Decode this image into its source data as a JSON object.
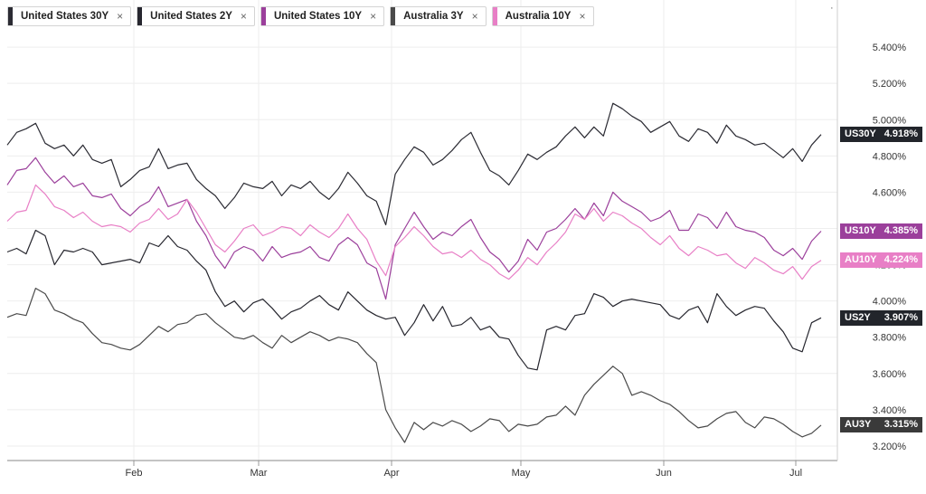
{
  "legend": [
    {
      "label": "United States 30Y",
      "color": "#2b2b33"
    },
    {
      "label": "United States 2Y",
      "color": "#26262e"
    },
    {
      "label": "United States 10Y",
      "color": "#9b3f9b"
    },
    {
      "label": "Australia 3Y",
      "color": "#4a4a4a"
    },
    {
      "label": "Australia 10Y",
      "color": "#e87fc6"
    }
  ],
  "legend_close_glyph": "×",
  "menu_glyph": "·",
  "chart_data": {
    "type": "line",
    "y_unit": "%",
    "ylim": [
      3.12,
      5.66
    ],
    "y_ticks": [
      "5.400%",
      "5.200%",
      "5.000%",
      "4.800%",
      "4.600%",
      "4.400%",
      "4.200%",
      "4.000%",
      "3.800%",
      "3.600%",
      "3.400%",
      "3.200%"
    ],
    "x_tick_labels": [
      "Feb",
      "Mar",
      "Apr",
      "May",
      "Jun",
      "Jul"
    ],
    "grid": true,
    "series": [
      {
        "name": "United States 30Y",
        "tag": "US30Y",
        "last_label": "4.918%",
        "color": "#2b2b33",
        "values": [
          4.86,
          4.93,
          4.95,
          4.98,
          4.87,
          4.84,
          4.86,
          4.8,
          4.86,
          4.78,
          4.76,
          4.78,
          4.63,
          4.67,
          4.72,
          4.74,
          4.84,
          4.73,
          4.75,
          4.76,
          4.67,
          4.62,
          4.58,
          4.51,
          4.57,
          4.65,
          4.63,
          4.62,
          4.66,
          4.58,
          4.64,
          4.62,
          4.66,
          4.6,
          4.56,
          4.62,
          4.71,
          4.65,
          4.58,
          4.55,
          4.42,
          4.7,
          4.78,
          4.85,
          4.82,
          4.75,
          4.78,
          4.83,
          4.89,
          4.93,
          4.82,
          4.72,
          4.69,
          4.64,
          4.72,
          4.81,
          4.78,
          4.82,
          4.85,
          4.91,
          4.96,
          4.9,
          4.96,
          4.91,
          5.09,
          5.06,
          5.02,
          4.99,
          4.93,
          4.96,
          4.99,
          4.91,
          4.88,
          4.95,
          4.93,
          4.87,
          4.97,
          4.91,
          4.89,
          4.86,
          4.87,
          4.83,
          4.79,
          4.84,
          4.77,
          4.86,
          4.918
        ]
      },
      {
        "name": "United States 2Y",
        "tag": "US2Y",
        "last_label": "3.907%",
        "color": "#26262e",
        "values": [
          4.27,
          4.29,
          4.26,
          4.39,
          4.36,
          4.2,
          4.28,
          4.27,
          4.29,
          4.27,
          4.2,
          4.21,
          4.22,
          4.23,
          4.21,
          4.32,
          4.3,
          4.36,
          4.3,
          4.28,
          4.22,
          4.17,
          4.05,
          3.97,
          4.0,
          3.94,
          3.99,
          4.01,
          3.96,
          3.9,
          3.94,
          3.96,
          4.0,
          4.03,
          3.98,
          3.95,
          4.05,
          4.0,
          3.95,
          3.92,
          3.9,
          3.91,
          3.81,
          3.88,
          3.98,
          3.89,
          3.97,
          3.86,
          3.87,
          3.91,
          3.84,
          3.86,
          3.8,
          3.79,
          3.7,
          3.63,
          3.62,
          3.84,
          3.86,
          3.84,
          3.92,
          3.93,
          4.04,
          4.02,
          3.97,
          4.0,
          4.01,
          4.0,
          3.99,
          3.98,
          3.92,
          3.9,
          3.95,
          3.97,
          3.88,
          4.04,
          3.97,
          3.92,
          3.95,
          3.97,
          3.96,
          3.89,
          3.83,
          3.74,
          3.72,
          3.88,
          3.907
        ]
      },
      {
        "name": "United States 10Y",
        "tag": "US10Y",
        "last_label": "4.385%",
        "color": "#9b3f9b",
        "values": [
          4.64,
          4.72,
          4.73,
          4.79,
          4.71,
          4.65,
          4.69,
          4.63,
          4.65,
          4.58,
          4.57,
          4.59,
          4.51,
          4.47,
          4.52,
          4.55,
          4.63,
          4.52,
          4.54,
          4.56,
          4.44,
          4.36,
          4.25,
          4.18,
          4.27,
          4.3,
          4.28,
          4.22,
          4.3,
          4.24,
          4.26,
          4.27,
          4.3,
          4.24,
          4.22,
          4.31,
          4.35,
          4.31,
          4.21,
          4.18,
          4.01,
          4.31,
          4.4,
          4.49,
          4.41,
          4.34,
          4.38,
          4.36,
          4.41,
          4.45,
          4.35,
          4.27,
          4.23,
          4.16,
          4.22,
          4.34,
          4.28,
          4.38,
          4.4,
          4.45,
          4.51,
          4.45,
          4.54,
          4.47,
          4.6,
          4.55,
          4.52,
          4.49,
          4.44,
          4.46,
          4.5,
          4.39,
          4.39,
          4.48,
          4.46,
          4.4,
          4.49,
          4.41,
          4.39,
          4.38,
          4.35,
          4.28,
          4.25,
          4.29,
          4.23,
          4.33,
          4.385
        ]
      },
      {
        "name": "Australia 3Y",
        "tag": "AU3Y",
        "last_label": "3.315%",
        "color": "#4a4a4a",
        "values": [
          3.91,
          3.93,
          3.92,
          4.07,
          4.04,
          3.95,
          3.93,
          3.9,
          3.88,
          3.82,
          3.77,
          3.76,
          3.74,
          3.73,
          3.76,
          3.81,
          3.86,
          3.83,
          3.87,
          3.88,
          3.92,
          3.93,
          3.88,
          3.84,
          3.8,
          3.79,
          3.81,
          3.77,
          3.74,
          3.81,
          3.77,
          3.8,
          3.83,
          3.81,
          3.78,
          3.8,
          3.79,
          3.77,
          3.71,
          3.66,
          3.4,
          3.3,
          3.22,
          3.33,
          3.29,
          3.33,
          3.31,
          3.34,
          3.32,
          3.28,
          3.31,
          3.35,
          3.34,
          3.28,
          3.32,
          3.31,
          3.32,
          3.36,
          3.37,
          3.42,
          3.37,
          3.48,
          3.54,
          3.59,
          3.64,
          3.6,
          3.48,
          3.5,
          3.48,
          3.45,
          3.43,
          3.39,
          3.34,
          3.3,
          3.31,
          3.35,
          3.38,
          3.39,
          3.33,
          3.3,
          3.36,
          3.35,
          3.32,
          3.28,
          3.25,
          3.27,
          3.315
        ]
      },
      {
        "name": "Australia 10Y",
        "tag": "AU10Y",
        "last_label": "4.224%",
        "color": "#e87fc6",
        "values": [
          4.44,
          4.49,
          4.5,
          4.64,
          4.59,
          4.52,
          4.5,
          4.46,
          4.49,
          4.44,
          4.41,
          4.42,
          4.41,
          4.38,
          4.43,
          4.45,
          4.51,
          4.45,
          4.48,
          4.56,
          4.49,
          4.4,
          4.31,
          4.27,
          4.33,
          4.4,
          4.42,
          4.36,
          4.38,
          4.41,
          4.4,
          4.36,
          4.42,
          4.38,
          4.35,
          4.4,
          4.48,
          4.4,
          4.34,
          4.22,
          4.14,
          4.3,
          4.35,
          4.41,
          4.36,
          4.3,
          4.26,
          4.27,
          4.24,
          4.28,
          4.23,
          4.2,
          4.15,
          4.12,
          4.17,
          4.24,
          4.2,
          4.27,
          4.32,
          4.38,
          4.48,
          4.45,
          4.51,
          4.44,
          4.49,
          4.47,
          4.43,
          4.4,
          4.35,
          4.31,
          4.36,
          4.29,
          4.25,
          4.3,
          4.28,
          4.25,
          4.26,
          4.21,
          4.18,
          4.24,
          4.21,
          4.17,
          4.15,
          4.19,
          4.12,
          4.19,
          4.224
        ]
      }
    ]
  }
}
